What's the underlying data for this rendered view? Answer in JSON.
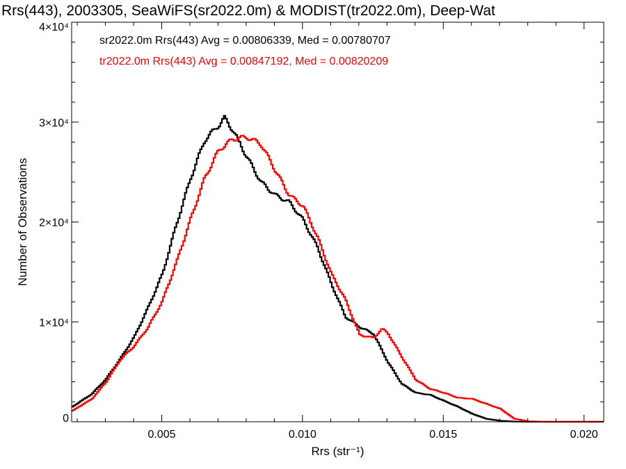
{
  "chart_data": {
    "type": "line",
    "title": "Rrs(443), 2003305, SeaWiFS(sr2022.0m) & MODIST(tr2022.0m), Deep-Wat",
    "xlabel": "Rrs (str⁻¹)",
    "ylabel": "Number of Observations",
    "xlim": [
      0.0018,
      0.0207
    ],
    "ylim": [
      0,
      40000
    ],
    "x_ticks": [
      {
        "value": 0.005,
        "label": "0.005"
      },
      {
        "value": 0.01,
        "label": "0.010"
      },
      {
        "value": 0.015,
        "label": "0.015"
      },
      {
        "value": 0.02,
        "label": "0.020"
      }
    ],
    "y_ticks": [
      {
        "value": 0,
        "label": "0"
      },
      {
        "value": 10000,
        "label": "1×10⁴"
      },
      {
        "value": 20000,
        "label": "2×10⁴"
      },
      {
        "value": 30000,
        "label": "3×10⁴"
      },
      {
        "value": 40000,
        "label": "4×10⁴"
      }
    ],
    "grid": false,
    "step_histogram": true,
    "annotations": [
      {
        "text": "sr2022.0m Rrs(443) Avg = 0.00806339, Med = 0.00780707",
        "color": "#000000"
      },
      {
        "text": "tr2022.0m Rrs(443) Avg = 0.00847192, Med = 0.00820209",
        "color": "#ff0000"
      }
    ],
    "series": [
      {
        "name": "sr2022.0m",
        "color": "#000000",
        "points": [
          [
            0.0018,
            1500
          ],
          [
            0.0025,
            2800
          ],
          [
            0.003,
            4300
          ],
          [
            0.0035,
            6300
          ],
          [
            0.004,
            8500
          ],
          [
            0.0045,
            11500
          ],
          [
            0.005,
            14800
          ],
          [
            0.0055,
            19800
          ],
          [
            0.006,
            24400
          ],
          [
            0.0065,
            28200
          ],
          [
            0.007,
            29700
          ],
          [
            0.0072,
            30400
          ],
          [
            0.0075,
            29200
          ],
          [
            0.008,
            26500
          ],
          [
            0.0085,
            24000
          ],
          [
            0.009,
            22700
          ],
          [
            0.0095,
            22000
          ],
          [
            0.01,
            20200
          ],
          [
            0.0105,
            17500
          ],
          [
            0.011,
            13800
          ],
          [
            0.0115,
            10500
          ],
          [
            0.012,
            9500
          ],
          [
            0.0125,
            8800
          ],
          [
            0.013,
            6000
          ],
          [
            0.0135,
            3800
          ],
          [
            0.014,
            2900
          ],
          [
            0.0145,
            2700
          ],
          [
            0.015,
            2100
          ],
          [
            0.0155,
            1500
          ],
          [
            0.016,
            800
          ],
          [
            0.0165,
            300
          ],
          [
            0.017,
            100
          ],
          [
            0.0175,
            20
          ],
          [
            0.018,
            0
          ],
          [
            0.0207,
            0
          ]
        ]
      },
      {
        "name": "tr2022.0m",
        "color": "#ff0000",
        "points": [
          [
            0.0018,
            1100
          ],
          [
            0.0025,
            2300
          ],
          [
            0.003,
            4000
          ],
          [
            0.0035,
            6200
          ],
          [
            0.004,
            7600
          ],
          [
            0.0045,
            9500
          ],
          [
            0.005,
            12100
          ],
          [
            0.0055,
            16000
          ],
          [
            0.006,
            20300
          ],
          [
            0.0065,
            24400
          ],
          [
            0.007,
            27200
          ],
          [
            0.0075,
            28300
          ],
          [
            0.008,
            28500
          ],
          [
            0.0085,
            27800
          ],
          [
            0.009,
            25200
          ],
          [
            0.0095,
            22700
          ],
          [
            0.01,
            21600
          ],
          [
            0.0105,
            18500
          ],
          [
            0.011,
            14800
          ],
          [
            0.0115,
            12200
          ],
          [
            0.012,
            8700
          ],
          [
            0.0125,
            8400
          ],
          [
            0.0128,
            9300
          ],
          [
            0.013,
            8900
          ],
          [
            0.0135,
            6500
          ],
          [
            0.014,
            4200
          ],
          [
            0.0145,
            3300
          ],
          [
            0.015,
            2900
          ],
          [
            0.0155,
            2400
          ],
          [
            0.016,
            2300
          ],
          [
            0.0165,
            1800
          ],
          [
            0.017,
            1300
          ],
          [
            0.0175,
            300
          ],
          [
            0.018,
            50
          ],
          [
            0.0185,
            0
          ],
          [
            0.0207,
            0
          ]
        ]
      }
    ]
  }
}
